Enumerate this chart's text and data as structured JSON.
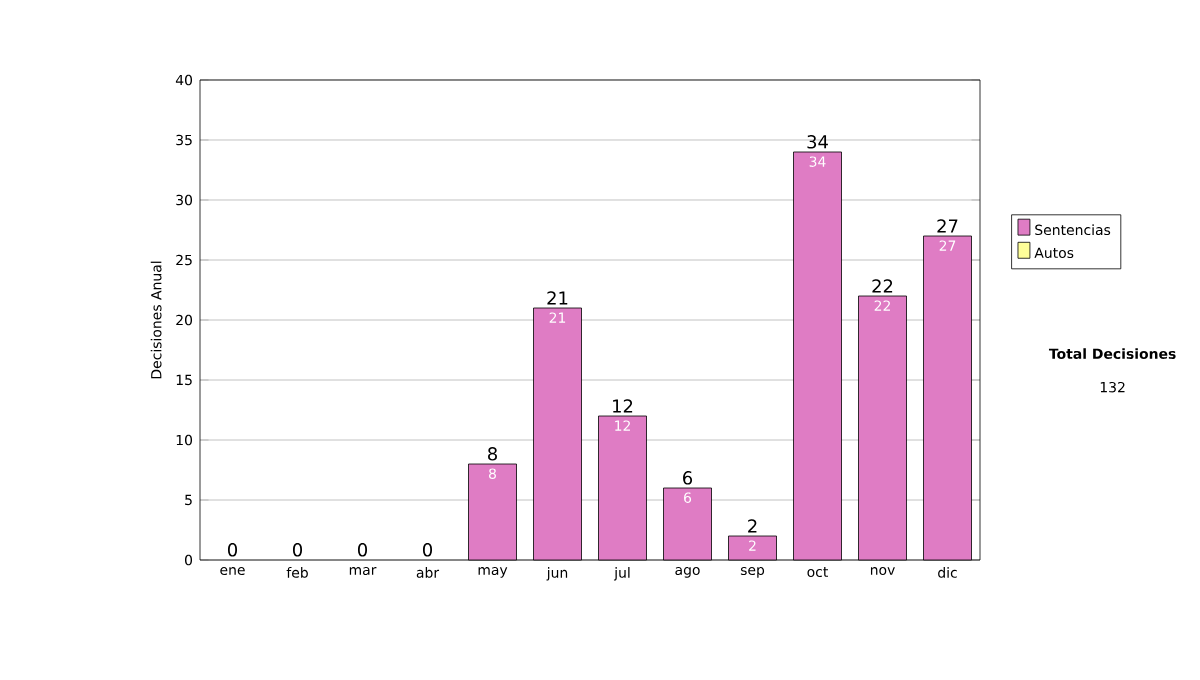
{
  "chart_data": {
    "type": "bar",
    "stacked": true,
    "ylabel": "Decisiones Anual",
    "categories": [
      "ene",
      "feb",
      "mar",
      "abr",
      "may",
      "jun",
      "jul",
      "ago",
      "sep",
      "oct",
      "nov",
      "dic"
    ],
    "series": [
      {
        "name": "Sentencias",
        "color": "#df7cc4",
        "values": [
          0,
          0,
          0,
          0,
          8,
          21,
          12,
          6,
          2,
          34,
          22,
          27
        ],
        "value_labels": [
          null,
          null,
          null,
          null,
          "8",
          "21",
          "12",
          "6",
          "2",
          "34",
          "22",
          "27"
        ]
      },
      {
        "name": "Autos",
        "color": "#ffff99",
        "values": [
          0,
          0,
          0,
          0,
          0,
          0,
          0,
          0,
          0,
          0,
          0,
          0
        ]
      }
    ],
    "totals": [
      "0",
      "0",
      "0",
      "0",
      "8",
      "21",
      "12",
      "6",
      "2",
      "34",
      "22",
      "27"
    ],
    "ylim": [
      0,
      40
    ],
    "yticks": [
      0,
      5,
      10,
      15,
      20,
      25,
      30,
      35,
      40
    ],
    "grid": "y",
    "legend": "right",
    "annotations": [
      "Total Decisiones",
      "132"
    ]
  }
}
